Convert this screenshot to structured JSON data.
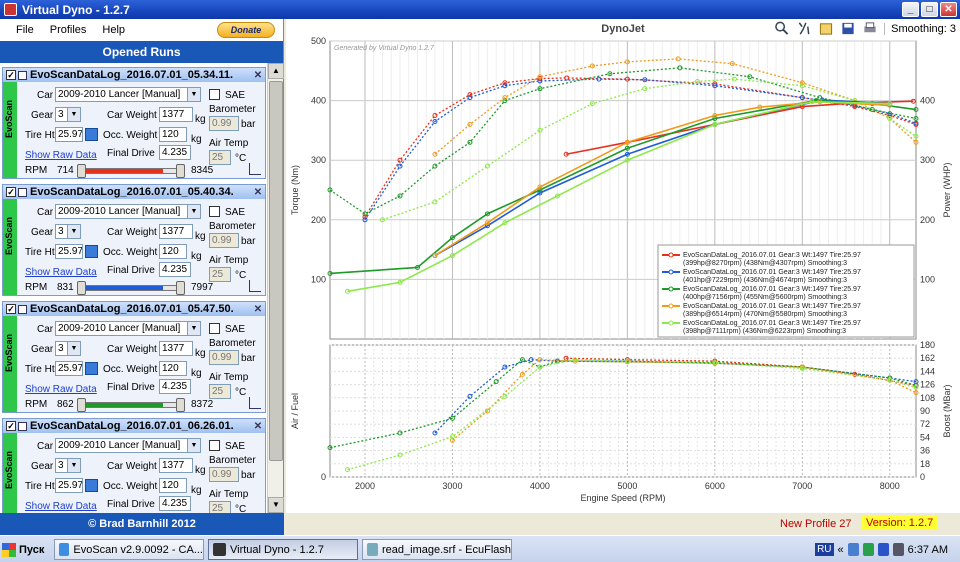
{
  "window": {
    "title": "Virtual Dyno - 1.2.7"
  },
  "menu": {
    "file": "File",
    "profiles": "Profiles",
    "help": "Help",
    "donate": "Donate"
  },
  "panel": {
    "opened_runs": "Opened Runs",
    "footer": "© Brad Barnhill 2012"
  },
  "labels": {
    "car": "Car",
    "gear": "Gear",
    "car_weight": "Car Weight",
    "kg": "kg",
    "tire_ht": "Tire Ht",
    "occ_weight": "Occ. Weight",
    "final_drive": "Final Drive",
    "show_raw": "Show Raw Data",
    "rpm": "RPM",
    "sae": "SAE",
    "barometer": "Barometer",
    "bar": "bar",
    "air_temp": "Air Temp",
    "celsius": "°C",
    "side": "EvoScan"
  },
  "runs": [
    {
      "name": "EvoScanDataLog_2016.07.01_05.34.11.",
      "car": "2009-2010 Lancer [Manual]",
      "gear": "3",
      "car_weight": "1377",
      "tire_ht": "25.97",
      "occ_weight": "120",
      "final_drive": "4.235",
      "barometer": "0.99",
      "air_temp": "25",
      "rpm_min": "714",
      "rpm_max": "8345",
      "color": "#e8301c",
      "fill_fraction": 0.83
    },
    {
      "name": "EvoScanDataLog_2016.07.01_05.40.34.",
      "car": "2009-2010 Lancer [Manual]",
      "gear": "3",
      "car_weight": "1377",
      "tire_ht": "25.97",
      "occ_weight": "120",
      "final_drive": "4.235",
      "barometer": "0.99",
      "air_temp": "25",
      "rpm_min": "831",
      "rpm_max": "7997",
      "color": "#1f5cd6",
      "fill_fraction": 0.83
    },
    {
      "name": "EvoScanDataLog_2016.07.01_05.47.50.",
      "car": "2009-2010 Lancer [Manual]",
      "gear": "3",
      "car_weight": "1377",
      "tire_ht": "25.97",
      "occ_weight": "120",
      "final_drive": "4.235",
      "barometer": "0.99",
      "air_temp": "25",
      "rpm_min": "862",
      "rpm_max": "8372",
      "color": "#1e9a28",
      "fill_fraction": 0.83
    },
    {
      "name": "EvoScanDataLog_2016.07.01_06.26.01.",
      "car": "2009-2010 Lancer [Manual]",
      "gear": "3",
      "car_weight": "1377",
      "tire_ht": "25.97",
      "occ_weight": "120",
      "final_drive": "4.235",
      "barometer": "0.99",
      "air_temp": "25",
      "rpm_min": "",
      "rpm_max": "",
      "color": "#f09a1c",
      "fill_fraction": 0.83
    }
  ],
  "toolbar": {
    "smoothing": "Smoothing: 3"
  },
  "status": {
    "profile": "New Profile 27",
    "version": "Version: 1.2.7"
  },
  "taskbar": {
    "start": "Пуск",
    "tasks": [
      "EvoScan v2.9.0092 - CA...",
      "Virtual Dyno - 1.2.7",
      "read_image.srf - EcuFlash"
    ],
    "lang": "RU",
    "time": "6:37 AM"
  },
  "chart_data": [
    {
      "type": "line",
      "title": "DynoJet",
      "watermark": "Generated by Virtual Dyno 1.2.7",
      "xlabel": "",
      "ylabel": "Torque (Nm)",
      "y2label": "Power (WHP)",
      "xlim": [
        1600,
        8300
      ],
      "ylim": [
        0,
        500
      ],
      "yticks": [
        "100",
        "200",
        "300",
        "400",
        "500"
      ],
      "y2ticks": [
        "100",
        "200",
        "300",
        "400"
      ],
      "grid": true,
      "legend_position": "bottom-right",
      "legend": [
        "EvoScanDataLog_2016.07.01 Gear:3 Wt:1497 Tire:25.97 (399hp@8270rpm) (438Nm@4307rpm) Smoothing:3",
        "EvoScanDataLog_2016.07.01 Gear:3 Wt:1497 Tire:25.97 (401hp@7229rpm) (436Nm@4674rpm) Smoothing:3",
        "EvoScanDataLog_2016.07.01 Gear:3 Wt:1497 Tire:25.97 (400hp@7156rpm) (455Nm@5600rpm) Smoothing:3",
        "EvoScanDataLog_2016.07.01 Gear:3 Wt:1497 Tire:25.97 (389hp@6514rpm) (470Nm@5580rpm) Smoothing:3",
        "EvoScanDataLog_2016.07.01 Gear:3 Wt:1497 Tire:25.97 (398hp@7111rpm) (436Nm@6223rpm) Smoothing:3"
      ],
      "series_colors": [
        "#e8301c",
        "#1f5cd6",
        "#1e9a28",
        "#f09a1c",
        "#8ee84a"
      ],
      "torque_series": [
        {
          "x": [
            2000,
            2400,
            2800,
            3200,
            3600,
            4000,
            4307,
            5000,
            6000,
            7000,
            7600,
            8000,
            8300
          ],
          "y": [
            205,
            300,
            375,
            410,
            430,
            437,
            438,
            436,
            428,
            405,
            390,
            375,
            360
          ]
        },
        {
          "x": [
            2000,
            2400,
            2800,
            3200,
            3600,
            4000,
            4674,
            5200,
            6000,
            7000,
            7600,
            8000,
            8300
          ],
          "y": [
            200,
            290,
            365,
            405,
            425,
            433,
            436,
            435,
            425,
            405,
            392,
            378,
            362
          ]
        },
        {
          "x": [
            1600,
            2000,
            2400,
            2800,
            3200,
            3600,
            4000,
            4800,
            5600,
            6400,
            7200,
            7800,
            8300
          ],
          "y": [
            250,
            210,
            240,
            290,
            330,
            400,
            420,
            445,
            455,
            440,
            405,
            385,
            370
          ]
        },
        {
          "x": [
            2800,
            3200,
            3600,
            4000,
            4600,
            5000,
            5580,
            6200,
            7000,
            7600,
            8000,
            8300
          ],
          "y": [
            310,
            360,
            405,
            440,
            458,
            465,
            470,
            462,
            430,
            400,
            370,
            330
          ]
        },
        {
          "x": [
            2200,
            2800,
            3400,
            4000,
            4600,
            5200,
            5800,
            6223,
            7000,
            7600,
            8000,
            8300
          ],
          "y": [
            200,
            230,
            290,
            350,
            395,
            420,
            432,
            436,
            425,
            400,
            370,
            340
          ]
        }
      ],
      "power_series": [
        {
          "x": [
            4300,
            5000,
            6000,
            7000,
            7600,
            8270
          ],
          "y": [
            310,
            330,
            360,
            390,
            396,
            399
          ]
        },
        {
          "x": [
            2800,
            3400,
            4000,
            5000,
            6000,
            7229,
            8000
          ],
          "y": [
            140,
            190,
            245,
            310,
            360,
            401,
            395
          ]
        },
        {
          "x": [
            1600,
            2600,
            3000,
            3400,
            4000,
            5000,
            6000,
            7156,
            7800,
            8300
          ],
          "y": [
            110,
            120,
            170,
            210,
            250,
            320,
            370,
            400,
            395,
            385
          ]
        },
        {
          "x": [
            2800,
            3400,
            4000,
            5000,
            6000,
            6514,
            7200,
            8000
          ],
          "y": [
            140,
            195,
            255,
            330,
            375,
            389,
            398,
            392
          ]
        },
        {
          "x": [
            1800,
            2400,
            3000,
            3600,
            4200,
            5000,
            6000,
            7111,
            8000
          ],
          "y": [
            80,
            95,
            140,
            195,
            240,
            300,
            360,
            398,
            395
          ]
        }
      ]
    },
    {
      "type": "line",
      "title": "",
      "xlabel": "Engine Speed (RPM)",
      "ylabel": "Air / Fuel",
      "y2label": "Boost (MBar)",
      "xlim": [
        1600,
        8300
      ],
      "ylim": [
        0,
        180
      ],
      "xticks": [
        "2000",
        "3000",
        "4000",
        "5000",
        "6000",
        "7000",
        "8000"
      ],
      "y2ticks": [
        "0",
        "18",
        "36",
        "54",
        "72",
        "90",
        "108",
        "126",
        "144",
        "162",
        "180"
      ],
      "grid": true,
      "series": [
        {
          "x": [
            4300,
            5000,
            6000,
            7000,
            7600,
            8300
          ],
          "y": [
            162,
            160,
            158,
            150,
            140,
            125
          ]
        },
        {
          "x": [
            2800,
            3200,
            3600,
            3900,
            4200,
            5000,
            6000,
            7000,
            8000,
            8300
          ],
          "y": [
            60,
            110,
            150,
            160,
            158,
            158,
            155,
            150,
            135,
            130
          ]
        },
        {
          "x": [
            1600,
            2400,
            3000,
            3500,
            3800,
            4000,
            4200,
            6000,
            7000,
            8000,
            8300
          ],
          "y": [
            40,
            60,
            80,
            130,
            160,
            150,
            158,
            156,
            150,
            135,
            125
          ]
        },
        {
          "x": [
            3000,
            3400,
            3800,
            4000,
            4400,
            5000,
            6000,
            7000,
            8000,
            8300
          ],
          "y": [
            50,
            90,
            140,
            160,
            158,
            157,
            155,
            150,
            132,
            115
          ]
        },
        {
          "x": [
            1800,
            2400,
            3000,
            3600,
            4000,
            4400,
            5000,
            6000,
            7000,
            8000,
            8300
          ],
          "y": [
            10,
            30,
            55,
            110,
            150,
            160,
            158,
            156,
            148,
            132,
            122
          ]
        }
      ]
    }
  ]
}
